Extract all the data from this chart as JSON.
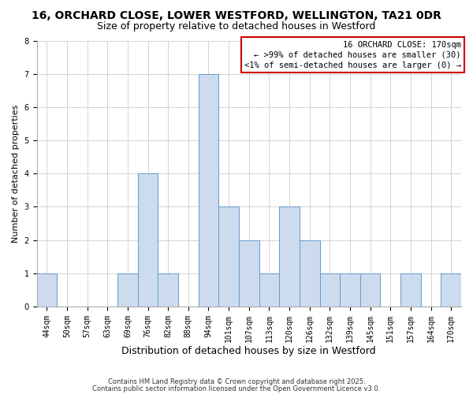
{
  "title": "16, ORCHARD CLOSE, LOWER WESTFORD, WELLINGTON, TA21 0DR",
  "subtitle": "Size of property relative to detached houses in Westford",
  "xlabel": "Distribution of detached houses by size in Westford",
  "ylabel": "Number of detached properties",
  "bar_color": "#ccdcee",
  "bar_edge_color": "#6699cc",
  "background_color": "#ffffff",
  "grid_color": "#cccccc",
  "categories": [
    "44sqm",
    "50sqm",
    "57sqm",
    "63sqm",
    "69sqm",
    "76sqm",
    "82sqm",
    "88sqm",
    "94sqm",
    "101sqm",
    "107sqm",
    "113sqm",
    "120sqm",
    "126sqm",
    "132sqm",
    "139sqm",
    "145sqm",
    "151sqm",
    "157sqm",
    "164sqm",
    "170sqm"
  ],
  "values": [
    1,
    0,
    0,
    0,
    1,
    4,
    1,
    0,
    7,
    3,
    2,
    1,
    3,
    2,
    1,
    1,
    1,
    0,
    1,
    0,
    1
  ],
  "ylim": [
    0,
    8
  ],
  "yticks": [
    0,
    1,
    2,
    3,
    4,
    5,
    6,
    7,
    8
  ],
  "annotation_line1": "16 ORCHARD CLOSE: 170sqm",
  "annotation_line2": "← >99% of detached houses are smaller (30)",
  "annotation_line3": "<1% of semi-detached houses are larger (0) →",
  "annotation_box_color": "#cc0000",
  "annotation_box_bg": "#ffffff",
  "footer_line1": "Contains HM Land Registry data © Crown copyright and database right 2025.",
  "footer_line2": "Contains public sector information licensed under the Open Government Licence v3.0.",
  "title_fontsize": 10,
  "subtitle_fontsize": 9,
  "xlabel_fontsize": 9,
  "ylabel_fontsize": 8,
  "tick_fontsize": 7,
  "annotation_fontsize": 7.5,
  "footer_fontsize": 6
}
